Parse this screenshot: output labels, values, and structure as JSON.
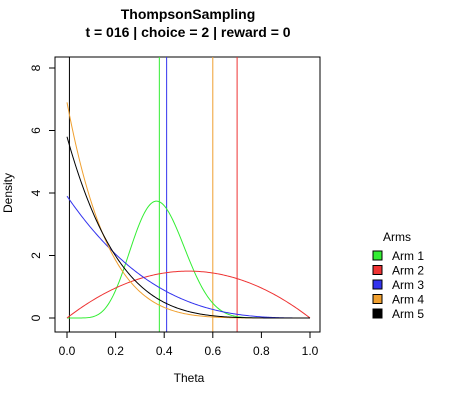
{
  "chart_data": {
    "type": "line",
    "title": "ThompsonSampling",
    "subtitle": "t = 016 | choice = 2 | reward = 0",
    "xlabel": "Theta",
    "ylabel": "Density",
    "xlim": [
      0,
      1
    ],
    "ylim": [
      0,
      8
    ],
    "x_ticks": [
      0.0,
      0.2,
      0.4,
      0.6,
      0.8,
      1.0
    ],
    "x_tick_labels": [
      "0.0",
      "0.2",
      "0.4",
      "0.6",
      "0.8",
      "1.0"
    ],
    "y_ticks": [
      0,
      2,
      4,
      6,
      8
    ],
    "y_tick_labels": [
      "0",
      "2",
      "4",
      "6",
      "8"
    ],
    "legend": {
      "title": "Arms",
      "position": "right"
    },
    "grid": false,
    "series": [
      {
        "name": "Arm 1",
        "color": "#33ee33",
        "beta_alpha": 8,
        "beta_beta": 13,
        "sample": 0.38
      },
      {
        "name": "Arm 2",
        "color": "#ee3333",
        "beta_alpha": 2,
        "beta_beta": 2,
        "sample": 0.7
      },
      {
        "name": "Arm 3",
        "color": "#3333ee",
        "beta_alpha": 1,
        "beta_beta": 3.9,
        "sample": 0.41
      },
      {
        "name": "Arm 4",
        "color": "#f0a030",
        "beta_alpha": 1,
        "beta_beta": 6.9,
        "sample": 0.6
      },
      {
        "name": "Arm 5",
        "color": "#000000",
        "beta_alpha": 1,
        "beta_beta": 5.8,
        "sample": 0.01
      }
    ]
  }
}
